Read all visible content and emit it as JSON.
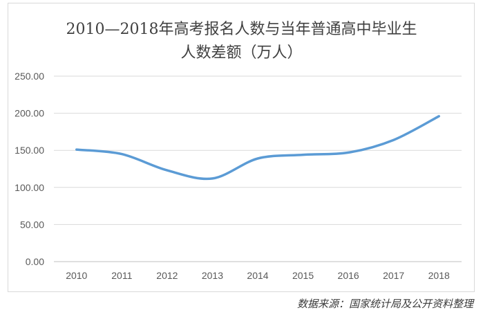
{
  "chart_data": {
    "type": "line",
    "title_lines": [
      "2010—2018年高考报名人数与当年普通高中毕业生",
      "人数差额（万人）"
    ],
    "categories": [
      "2010",
      "2011",
      "2012",
      "2013",
      "2014",
      "2015",
      "2016",
      "2017",
      "2018"
    ],
    "series": [
      {
        "values": [
          151,
          145,
          123,
          112,
          139,
          144,
          147,
          164,
          196
        ],
        "color": "#5b9bd5"
      }
    ],
    "ylim": [
      0,
      250
    ],
    "yticks": [
      "0.00",
      "50.00",
      "100.00",
      "150.00",
      "200.00",
      "250.00"
    ],
    "grid": true,
    "legend": "none"
  },
  "source": "数据来源：国家统计局及公开资料整理"
}
